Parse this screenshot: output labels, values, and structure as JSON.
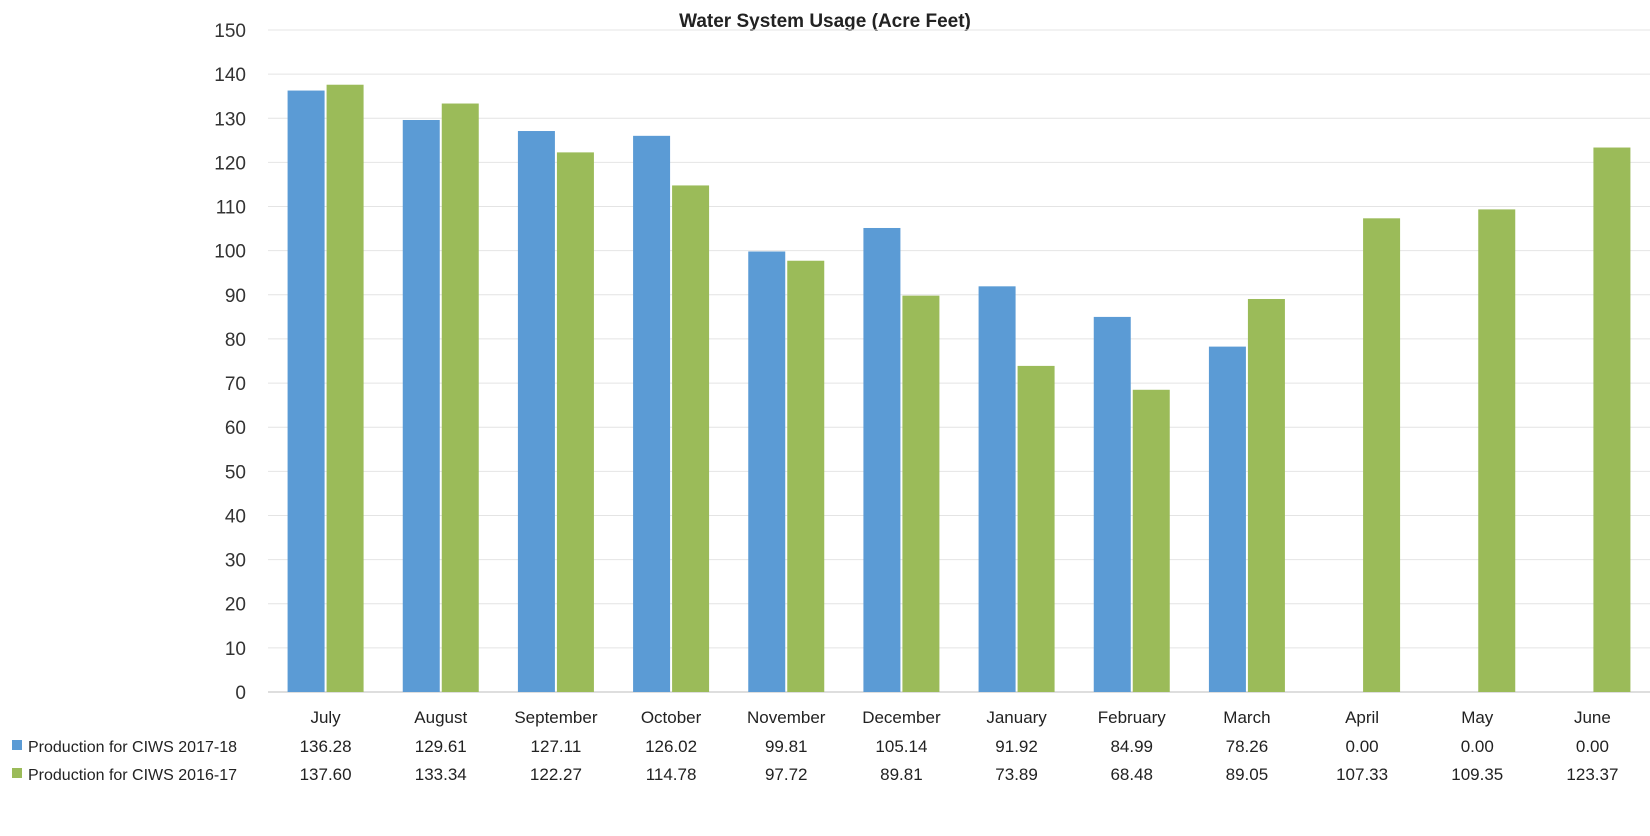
{
  "chart_data": {
    "type": "bar",
    "title": "Water System Usage (Acre Feet)",
    "xlabel": "",
    "ylabel": "",
    "ylim": [
      0,
      150
    ],
    "yticks": [
      0,
      10,
      20,
      30,
      40,
      50,
      60,
      70,
      80,
      90,
      100,
      110,
      120,
      130,
      140,
      150
    ],
    "grid": true,
    "legend_position": "bottom data table",
    "categories": [
      "July",
      "August",
      "September",
      "October",
      "November",
      "December",
      "January",
      "February",
      "March",
      "April",
      "May",
      "June"
    ],
    "series": [
      {
        "name": "Production for CIWS 2017-18",
        "color": "#5b9bd5",
        "values": [
          136.28,
          129.61,
          127.11,
          126.02,
          99.81,
          105.14,
          91.92,
          84.99,
          78.26,
          0.0,
          0.0,
          0.0
        ],
        "labels": [
          "136.28",
          "129.61",
          "127.11",
          "126.02",
          "99.81",
          "105.14",
          "91.92",
          "84.99",
          "78.26",
          "0.00",
          "0.00",
          "0.00"
        ]
      },
      {
        "name": "Production for CIWS 2016-17",
        "color": "#9bbb59",
        "values": [
          137.6,
          133.34,
          122.27,
          114.78,
          97.72,
          89.81,
          73.89,
          68.48,
          89.05,
          107.33,
          109.35,
          123.37
        ],
        "labels": [
          "137.60",
          "133.34",
          "122.27",
          "114.78",
          "97.72",
          "89.81",
          "73.89",
          "68.48",
          "89.05",
          "107.33",
          "109.35",
          "123.37"
        ]
      }
    ]
  }
}
